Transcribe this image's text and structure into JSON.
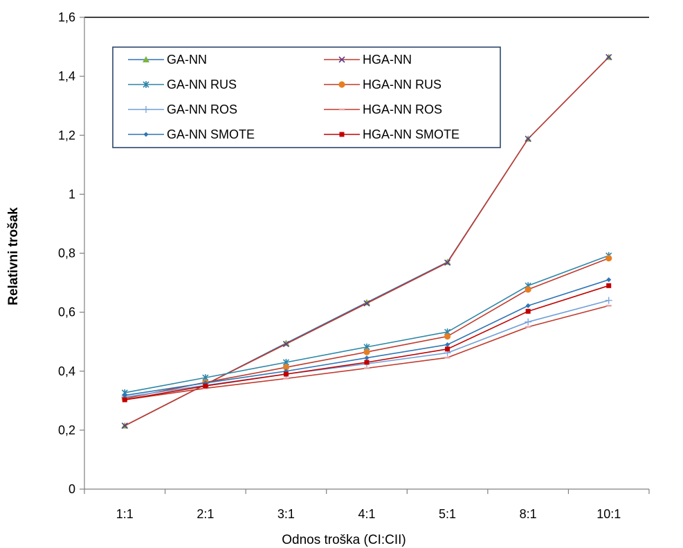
{
  "chart_data": {
    "type": "line",
    "title": "",
    "xlabel": "Odnos troška (CI:CII)",
    "ylabel": "Relativni trošak",
    "categories": [
      "1:1",
      "2:1",
      "3:1",
      "4:1",
      "5:1",
      "8:1",
      "10:1"
    ],
    "ylim": [
      0,
      1.6
    ],
    "yticks": [
      "0",
      "0,2",
      "0,4",
      "0,6",
      "0,8",
      "1",
      "1,2",
      "1,4",
      "1,6"
    ],
    "grid": false,
    "legend": "top-left inside plot, 2 columns",
    "series": [
      {
        "name": "GA-NN",
        "color": "#2E75B6",
        "marker": "triangle",
        "values": [
          0.215,
          0.355,
          0.495,
          0.633,
          0.77,
          1.188,
          1.465
        ]
      },
      {
        "name": "HGA-NN",
        "color": "#C0392B",
        "marker": "x",
        "values": [
          0.215,
          0.355,
          0.492,
          0.63,
          0.768,
          1.188,
          1.465
        ]
      },
      {
        "name": "GA-NN RUS",
        "color": "#2E86A8",
        "marker": "asterisk",
        "values": [
          0.327,
          0.378,
          0.43,
          0.482,
          0.533,
          0.69,
          0.792
        ]
      },
      {
        "name": "HGA-NN RUS",
        "color": "#C0392B",
        "marker": "circle",
        "values": [
          0.307,
          0.362,
          0.413,
          0.465,
          0.518,
          0.677,
          0.783
        ]
      },
      {
        "name": "GA-NN ROS",
        "color": "#6F9FD8",
        "marker": "plus",
        "values": [
          0.312,
          0.352,
          0.39,
          0.425,
          0.462,
          0.567,
          0.64
        ]
      },
      {
        "name": "HGA-NN ROS",
        "color": "#C0392B",
        "marker": "dash",
        "values": [
          0.303,
          0.342,
          0.375,
          0.41,
          0.446,
          0.55,
          0.622
        ]
      },
      {
        "name": "GA-NN SMOTE",
        "color": "#2E75B6",
        "marker": "diamond",
        "values": [
          0.318,
          0.36,
          0.4,
          0.445,
          0.49,
          0.622,
          0.71
        ]
      },
      {
        "name": "HGA-NN SMOTE",
        "color": "#C00000",
        "marker": "square",
        "values": [
          0.303,
          0.35,
          0.39,
          0.43,
          0.475,
          0.603,
          0.69
        ]
      }
    ]
  }
}
